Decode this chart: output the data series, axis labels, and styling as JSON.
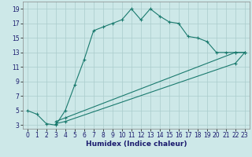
{
  "xlabel": "Humidex (Indice chaleur)",
  "xlim": [
    -0.5,
    23.5
  ],
  "ylim": [
    2.5,
    20
  ],
  "yticks": [
    3,
    5,
    7,
    9,
    11,
    13,
    15,
    17,
    19
  ],
  "xticks": [
    0,
    1,
    2,
    3,
    4,
    5,
    6,
    7,
    8,
    9,
    10,
    11,
    12,
    13,
    14,
    15,
    16,
    17,
    18,
    19,
    20,
    21,
    22,
    23
  ],
  "bg_color": "#cde8e8",
  "line_color": "#1a7a6e",
  "grid_color": "#aacccc",
  "line1_x": [
    0,
    1,
    2,
    3,
    4,
    5,
    6,
    7,
    8,
    9,
    10,
    11,
    12,
    13,
    14,
    15,
    16,
    17,
    18,
    19,
    20,
    21,
    22,
    23
  ],
  "line1_y": [
    5,
    4.5,
    3.2,
    3,
    5,
    8.5,
    12,
    16,
    16.5,
    17,
    17.5,
    19,
    17.5,
    19,
    18,
    17.2,
    17,
    15.2,
    15,
    14.5,
    13,
    13,
    13,
    13
  ],
  "line2_x": [
    3,
    4,
    22,
    23
  ],
  "line2_y": [
    3.5,
    4,
    13,
    13
  ],
  "line3_x": [
    3,
    4,
    22,
    23
  ],
  "line3_y": [
    3.2,
    3.5,
    11.5,
    13
  ],
  "tick_fontsize": 5.5,
  "xlabel_fontsize": 6.5
}
